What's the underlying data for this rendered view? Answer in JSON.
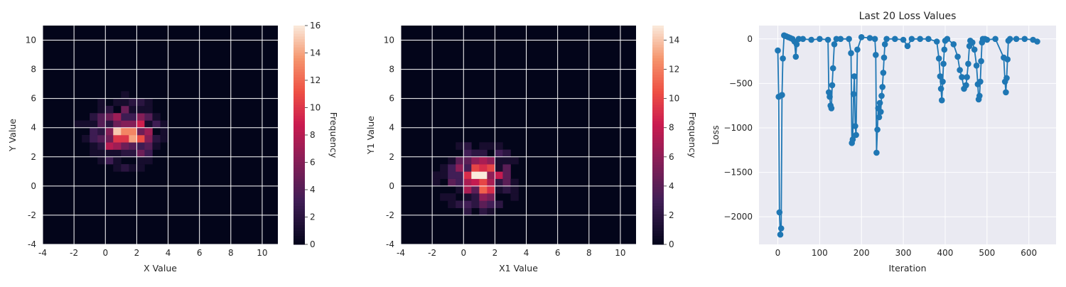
{
  "chart_data": [
    {
      "type": "heatmap",
      "title": "",
      "xlabel": "X Value",
      "ylabel": "Y Value",
      "xlim": [
        -4,
        11
      ],
      "ylim": [
        -4,
        11
      ],
      "xticks": [
        "-4",
        "-2",
        "0",
        "2",
        "4",
        "6",
        "8",
        "10"
      ],
      "yticks": [
        "-4",
        "-2",
        "0",
        "2",
        "4",
        "6",
        "8",
        "10"
      ],
      "grid": true,
      "colorbar": {
        "label": "Frequency",
        "range": [
          0,
          16
        ],
        "ticks": [
          "0",
          "2",
          "4",
          "6",
          "8",
          "10",
          "12",
          "14",
          "16"
        ]
      },
      "distribution": {
        "center_x": 1.3,
        "center_y": 3.6,
        "spread_x": 1.0,
        "spread_y": 1.0,
        "peak_frequency": 16
      }
    },
    {
      "type": "heatmap",
      "title": "",
      "xlabel": "X1 Value",
      "ylabel": "Y1 Value",
      "xlim": [
        -4,
        11
      ],
      "ylim": [
        -4,
        11
      ],
      "xticks": [
        "-4",
        "-2",
        "0",
        "2",
        "4",
        "6",
        "8",
        "10"
      ],
      "yticks": [
        "-4",
        "-2",
        "0",
        "2",
        "4",
        "6",
        "8",
        "10"
      ],
      "grid": true,
      "colorbar": {
        "label": "Frequency",
        "range": [
          0,
          15
        ],
        "ticks": [
          "0",
          "2",
          "4",
          "6",
          "8",
          "10",
          "12",
          "14"
        ]
      },
      "distribution": {
        "center_x": 1.0,
        "center_y": 0.6,
        "spread_x": 1.0,
        "spread_y": 1.0,
        "peak_frequency": 15
      }
    },
    {
      "type": "line",
      "title": "Last 20 Loss Values",
      "xlabel": "Iteration",
      "ylabel": "Loss",
      "xlim": [
        -45,
        665
      ],
      "ylim": [
        -2310,
        150
      ],
      "xticks": [
        "0",
        "100",
        "200",
        "300",
        "400",
        "500",
        "600"
      ],
      "yticks": [
        "0",
        "−500",
        "−1000",
        "−1500",
        "−2000"
      ],
      "grid": true,
      "color": "#1f77b4",
      "series": [
        {
          "x": [
            0,
            2,
            4,
            6,
            8,
            10,
            12,
            15,
            20,
            25,
            30,
            35,
            40,
            43,
            45,
            50,
            60,
            80,
            100,
            120,
            122,
            124,
            126,
            128,
            130,
            132,
            135,
            140,
            150,
            170,
            175,
            177,
            179,
            181,
            183,
            185,
            187,
            190,
            200,
            220,
            232,
            234,
            236,
            238,
            240,
            242,
            244,
            246,
            248,
            250,
            252,
            254,
            256,
            260,
            280,
            300,
            310,
            320,
            340,
            360,
            380,
            385,
            388,
            390,
            392,
            394,
            396,
            398,
            400,
            405,
            420,
            430,
            435,
            440,
            445,
            450,
            452,
            455,
            458,
            460,
            465,
            470,
            475,
            478,
            480,
            482,
            484,
            486,
            488,
            490,
            495,
            500,
            520,
            540,
            543,
            545,
            547,
            549,
            551,
            555,
            570,
            590,
            610,
            620
          ],
          "y": [
            -130,
            -650,
            -1950,
            -2200,
            -2130,
            -630,
            -220,
            40,
            30,
            20,
            10,
            0,
            -30,
            -200,
            -60,
            0,
            0,
            -10,
            0,
            -10,
            -600,
            -650,
            -750,
            -780,
            -520,
            -330,
            -60,
            0,
            0,
            0,
            -160,
            -1170,
            -1130,
            -620,
            -420,
            -980,
            -1080,
            -120,
            20,
            10,
            0,
            -180,
            -1280,
            -1020,
            -780,
            -880,
            -720,
            -820,
            -640,
            -540,
            -380,
            -210,
            -60,
            0,
            0,
            -10,
            -80,
            0,
            0,
            0,
            -30,
            -220,
            -420,
            -560,
            -690,
            -480,
            -280,
            -120,
            -20,
            0,
            -60,
            -200,
            -350,
            -430,
            -560,
            -520,
            -430,
            -280,
            -80,
            -20,
            -40,
            -120,
            -300,
            -510,
            -680,
            -640,
            -480,
            -250,
            -40,
            0,
            0,
            -10,
            0,
            -210,
            -480,
            -600,
            -440,
            -230,
            -20,
            0,
            0,
            0,
            -10,
            -30
          ]
        }
      ]
    }
  ]
}
